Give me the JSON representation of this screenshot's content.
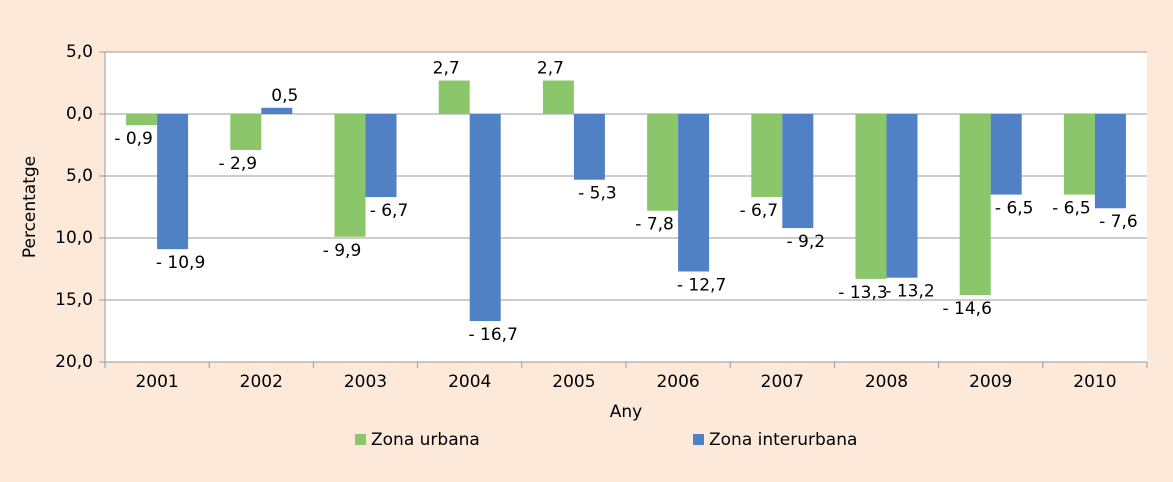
{
  "chart_data": {
    "type": "bar",
    "y_label": "Percentatge",
    "x_label": "Any",
    "categories": [
      "2001",
      "2002",
      "2003",
      "2004",
      "2005",
      "2006",
      "2007",
      "2008",
      "2009",
      "2010"
    ],
    "series": [
      {
        "name": "Zona urbana",
        "color": "#8cc66a",
        "values": [
          -0.9,
          -2.9,
          -9.9,
          2.7,
          2.7,
          -7.8,
          -6.7,
          -13.3,
          -14.6,
          -6.5
        ],
        "value_labels": [
          "- 0,9",
          "- 2,9",
          "- 9,9",
          "2,7",
          "2,7",
          "- 7,8",
          "- 6,7",
          "- 13,3",
          "- 14,6",
          "- 6,5"
        ]
      },
      {
        "name": "Zona interurbana",
        "color": "#4f81c4",
        "values": [
          -10.9,
          0.5,
          -6.7,
          -16.7,
          -5.3,
          -12.7,
          -9.2,
          -13.2,
          -6.5,
          -7.6
        ],
        "value_labels": [
          "- 10,9",
          "0,5",
          "- 6,7",
          "- 16,7",
          "- 5,3",
          "- 12,7",
          "- 9,2",
          "- 13,2",
          "- 6,5",
          "- 7,6"
        ]
      }
    ],
    "ylim": [
      -20,
      5
    ],
    "yticks": [
      {
        "value": 5,
        "label": "5,0"
      },
      {
        "value": 0,
        "label": "0,0"
      },
      {
        "value": -5,
        "label": "5,0"
      },
      {
        "value": -10,
        "label": "10,0"
      },
      {
        "value": -15,
        "label": "15,0"
      },
      {
        "value": -20,
        "label": "20,0"
      }
    ],
    "grid": true,
    "legend": "bottom"
  }
}
